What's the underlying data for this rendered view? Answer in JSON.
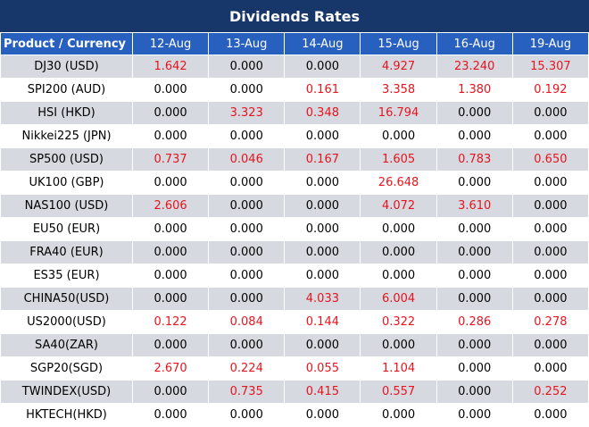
{
  "header": {
    "title": "Dividends Rates"
  },
  "table": {
    "columns": [
      "Product / Currency",
      "12-Aug",
      "13-Aug",
      "14-Aug",
      "15-Aug",
      "16-Aug",
      "19-Aug"
    ],
    "rows": [
      [
        "DJ30 (USD)",
        "1.642",
        "0.000",
        "0.000",
        "4.927",
        "23.240",
        "15.307"
      ],
      [
        "SPI200 (AUD)",
        "0.000",
        "0.000",
        "0.161",
        "3.358",
        "1.380",
        "0.192"
      ],
      [
        "HSI (HKD)",
        "0.000",
        "3.323",
        "0.348",
        "16.794",
        "0.000",
        "0.000"
      ],
      [
        "Nikkei225 (JPN)",
        "0.000",
        "0.000",
        "0.000",
        "0.000",
        "0.000",
        "0.000"
      ],
      [
        "SP500 (USD)",
        "0.737",
        "0.046",
        "0.167",
        "1.605",
        "0.783",
        "0.650"
      ],
      [
        "UK100 (GBP)",
        "0.000",
        "0.000",
        "0.000",
        "26.648",
        "0.000",
        "0.000"
      ],
      [
        "NAS100 (USD)",
        "2.606",
        "0.000",
        "0.000",
        "4.072",
        "3.610",
        "0.000"
      ],
      [
        "EU50 (EUR)",
        "0.000",
        "0.000",
        "0.000",
        "0.000",
        "0.000",
        "0.000"
      ],
      [
        "FRA40 (EUR)",
        "0.000",
        "0.000",
        "0.000",
        "0.000",
        "0.000",
        "0.000"
      ],
      [
        "ES35 (EUR)",
        "0.000",
        "0.000",
        "0.000",
        "0.000",
        "0.000",
        "0.000"
      ],
      [
        "CHINA50(USD)",
        "0.000",
        "0.000",
        "4.033",
        "6.004",
        "0.000",
        "0.000"
      ],
      [
        "US2000(USD)",
        "0.122",
        "0.084",
        "0.144",
        "0.322",
        "0.286",
        "0.278"
      ],
      [
        "SA40(ZAR)",
        "0.000",
        "0.000",
        "0.000",
        "0.000",
        "0.000",
        "0.000"
      ],
      [
        "SGP20(SGD)",
        "2.670",
        "0.224",
        "0.055",
        "1.104",
        "0.000",
        "0.000"
      ],
      [
        "TWINDEX(USD)",
        "0.000",
        "0.735",
        "0.415",
        "0.557",
        "0.000",
        "0.252"
      ],
      [
        "HKTECH(HKD)",
        "0.000",
        "0.000",
        "0.000",
        "0.000",
        "0.000",
        "0.000"
      ]
    ]
  }
}
